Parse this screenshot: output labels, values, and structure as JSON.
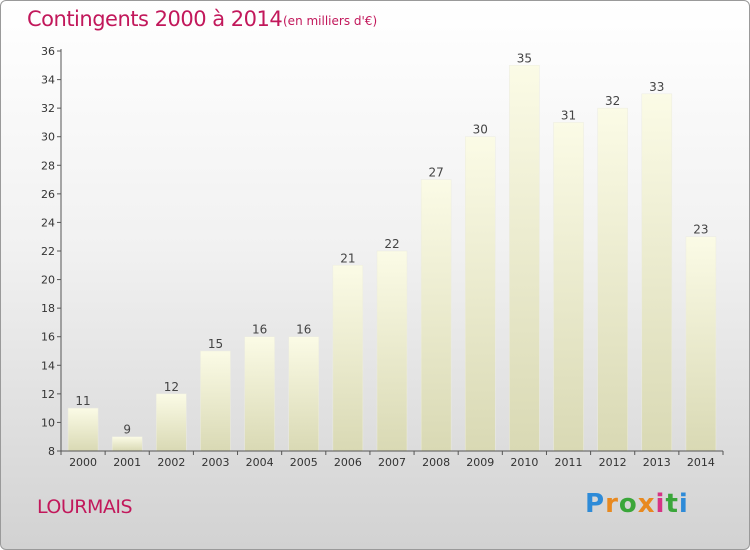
{
  "header": {
    "title": "Contingents 2000 à 2014",
    "subtitle": "(en milliers d'€)"
  },
  "footer": {
    "commune": "LOURMAIS",
    "brand": "Proxiti",
    "brand_colors": [
      "#2e8bd8",
      "#e8891f",
      "#3aa63a",
      "#e8891f",
      "#d63384",
      "#3aa63a",
      "#2e8bd8"
    ]
  },
  "chart_data": {
    "type": "bar",
    "categories": [
      "2000",
      "2001",
      "2002",
      "2003",
      "2004",
      "2005",
      "2006",
      "2007",
      "2008",
      "2009",
      "2010",
      "2011",
      "2012",
      "2013",
      "2014"
    ],
    "values": [
      11,
      9,
      12,
      15,
      16,
      16,
      21,
      22,
      27,
      30,
      35,
      31,
      32,
      33,
      23
    ],
    "title": "Contingents 2000 à 2014",
    "subtitle": "(en milliers d'€)",
    "xlabel": "",
    "ylabel": "",
    "ylim": [
      8,
      36
    ],
    "yticks": [
      8,
      10,
      12,
      14,
      16,
      18,
      20,
      22,
      24,
      26,
      28,
      30,
      32,
      34,
      36
    ],
    "grid": false,
    "bar_color": "#f6f6d2"
  }
}
